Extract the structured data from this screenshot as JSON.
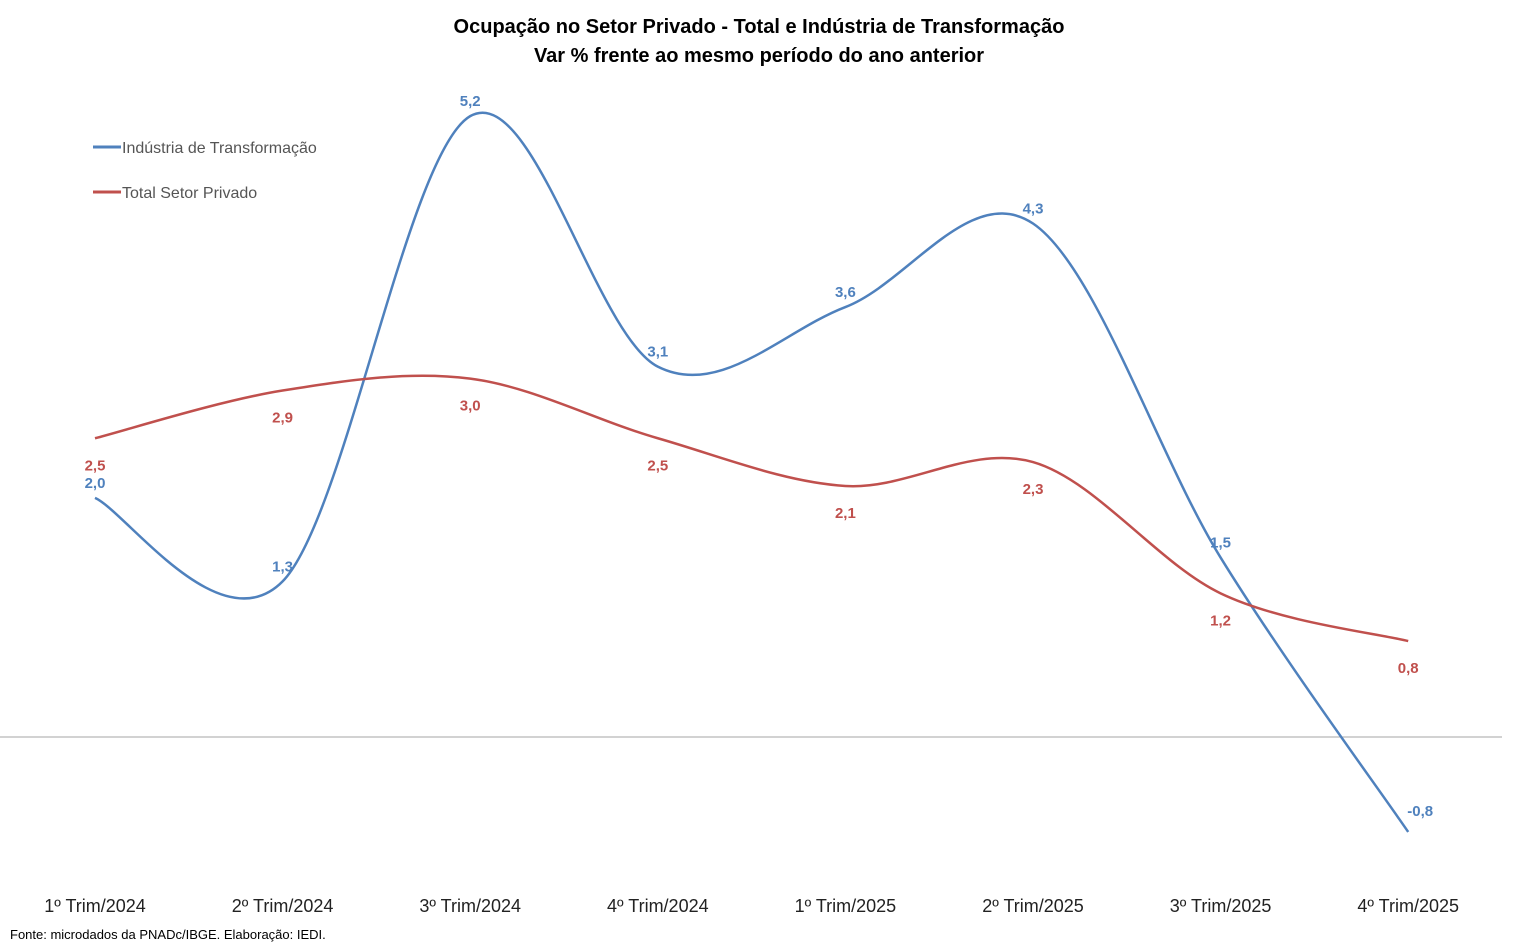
{
  "chart_data": {
    "type": "line",
    "title": "Ocupação no Setor Privado - Total e Indústria de Transformação",
    "subtitle": "Var % frente ao mesmo período do ano anterior",
    "categories": [
      "1º Trim/2024",
      "2º Trim/2024",
      "3º Trim/2024",
      "4º Trim/2024",
      "1º Trim/2025",
      "2º Trim/2025",
      "3º Trim/2025",
      "4º Trim/2025"
    ],
    "series": [
      {
        "name": "Indústria de Transformação",
        "color": "#4f81bd",
        "values": [
          2.0,
          1.3,
          5.2,
          3.1,
          3.6,
          4.3,
          1.5,
          -0.8
        ],
        "labels": [
          "2,0",
          "1,3",
          "5,2",
          "3,1",
          "3,6",
          "4,3",
          "1,5",
          "-0,8"
        ]
      },
      {
        "name": "Total Setor Privado",
        "color": "#c0504d",
        "values": [
          2.5,
          2.9,
          3.0,
          2.5,
          2.1,
          2.3,
          1.2,
          0.8
        ],
        "labels": [
          "2,5",
          "2,9",
          "3,0",
          "2,5",
          "2,1",
          "2,3",
          "1,2",
          "0,8"
        ]
      }
    ],
    "smooth": true,
    "legend": "top-left",
    "grid": false,
    "ylim": [
      -1.0,
      6.0
    ],
    "xlabel": "",
    "ylabel": ""
  },
  "source": "Fonte: microdados da PNADc/IBGE. Elaboração: IEDI."
}
